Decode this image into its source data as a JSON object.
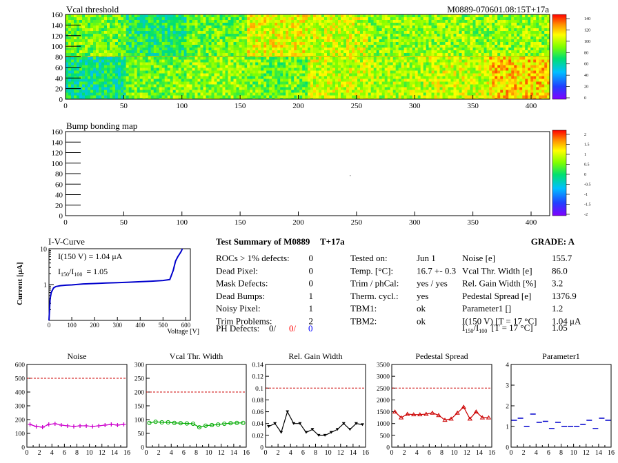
{
  "vcal_map": {
    "title": "Vcal threshold",
    "module_label": "M0889-070601.08:15T+17a",
    "x_ticks": [
      "0",
      "50",
      "100",
      "150",
      "200",
      "250",
      "300",
      "350",
      "400"
    ],
    "y_ticks": [
      "0",
      "20",
      "40",
      "60",
      "80",
      "100",
      "120",
      "140",
      "160"
    ],
    "colorbar_ticks": [
      "0",
      "20",
      "40",
      "60",
      "80",
      "100",
      "120",
      "140"
    ],
    "roc_means_top": [
      90,
      75,
      90,
      110,
      105,
      95,
      95,
      95
    ],
    "roc_means_bottom": [
      70,
      90,
      95,
      90,
      105,
      100,
      105,
      120
    ]
  },
  "bump_map": {
    "title": "Bump bonding map",
    "x_ticks": [
      "0",
      "50",
      "100",
      "150",
      "200",
      "250",
      "300",
      "350",
      "400"
    ],
    "y_ticks": [
      "0",
      "20",
      "40",
      "60",
      "80",
      "100",
      "120",
      "140",
      "160"
    ],
    "colorbar_ticks": [
      "-2",
      "-1.5",
      "-1",
      "-0.5",
      "0",
      "0.5",
      "1",
      "1.5",
      "2"
    ]
  },
  "iv": {
    "title": "I-V-Curve",
    "ylabel": "Current [μA]",
    "xlabel": "Voltage [V]",
    "x_ticks": [
      "0",
      "100",
      "200",
      "300",
      "400",
      "500",
      "600"
    ],
    "y_ticks": [
      "1",
      "10"
    ],
    "annot1": "I(150 V) = 1.04 μA",
    "annot2_main": "I",
    "annot2_sub1": "150",
    "annot2_mid": "/I",
    "annot2_sub2": "100",
    "annot2_val": "=  1.05"
  },
  "summary": {
    "title": "Test Summary of M0889",
    "tag": "T+17a",
    "grade": "GRADE:  A",
    "left": [
      {
        "label": "ROCs > 1% defects:",
        "value": "0"
      },
      {
        "label": "Dead Pixel:",
        "value": "0"
      },
      {
        "label": "Mask Defects:",
        "value": "0"
      },
      {
        "label": "Dead Bumps:",
        "value": "1"
      },
      {
        "label": "Noisy Pixel:",
        "value": "1"
      },
      {
        "label": "Trim Problems:",
        "value": "2"
      }
    ],
    "ph_label": "PH Defects:",
    "ph_v1": "0/",
    "ph_v2": "0/",
    "ph_v3": "0",
    "ph_colors": [
      "#000000",
      "#ff0000",
      "#0000ff"
    ],
    "mid": [
      {
        "label": "Tested on:",
        "value": "Jun 1"
      },
      {
        "label": "Temp. [°C]:",
        "value": "16.7 +- 0.3"
      },
      {
        "label": "Trim / phCal:",
        "value": "yes / yes"
      },
      {
        "label": "Therm. cycl.:",
        "value": "yes"
      },
      {
        "label": "TBM1:",
        "value": "ok"
      },
      {
        "label": "TBM2:",
        "value": "ok"
      }
    ],
    "right": [
      {
        "label": "Noise [e]",
        "value": "155.7"
      },
      {
        "label": "Vcal Thr. Width [e]",
        "value": "86.0"
      },
      {
        "label": "Rel. Gain Width [%]",
        "value": "3.2"
      },
      {
        "label": "Pedestal Spread [e]",
        "value": "1376.9"
      },
      {
        "label": "Parameter1 []",
        "value": "1.2"
      },
      {
        "label": "I(150 V) [T = 17 °C]",
        "value": "1.04 μA"
      }
    ],
    "ratio_label_tail": "[T = 17 °C]",
    "ratio_value": "1.05"
  },
  "chart_data": [
    {
      "type": "heatmap",
      "title": "Vcal threshold",
      "xlim": [
        0,
        416
      ],
      "ylim": [
        0,
        160
      ],
      "z_range": [
        0,
        150
      ],
      "note_rocs": "16 ROCs, 2 rows of 8"
    },
    {
      "type": "heatmap",
      "title": "Bump bonding map",
      "xlim": [
        0,
        416
      ],
      "ylim": [
        0,
        160
      ],
      "z_range": [
        -2,
        2
      ]
    },
    {
      "type": "line",
      "title": "I-V-Curve",
      "xlabel": "Voltage [V]",
      "ylabel": "Current [μA]",
      "xlim": [
        0,
        620
      ],
      "ylim": [
        0.1,
        10
      ],
      "yscale": "log",
      "x": [
        0,
        5,
        10,
        20,
        30,
        50,
        75,
        100,
        150,
        200,
        250,
        300,
        350,
        400,
        450,
        500,
        530,
        545,
        555,
        565,
        575,
        580,
        585
      ],
      "y": [
        0.1,
        0.4,
        0.6,
        0.8,
        0.88,
        0.93,
        0.96,
        0.98,
        1.04,
        1.07,
        1.1,
        1.13,
        1.16,
        1.2,
        1.24,
        1.3,
        1.38,
        2.5,
        4.5,
        6,
        7.5,
        8.5,
        10
      ],
      "color": "#0000cc"
    },
    {
      "type": "line",
      "title": "Noise",
      "xlim": [
        0,
        16
      ],
      "ylim": [
        0,
        600
      ],
      "x_ticks": [
        "0",
        "2",
        "4",
        "6",
        "8",
        "10",
        "12",
        "14",
        "16"
      ],
      "y_ticks": [
        "0",
        "100",
        "200",
        "300",
        "400",
        "500",
        "600"
      ],
      "x": [
        0.5,
        1.5,
        2.5,
        3.5,
        4.5,
        5.5,
        6.5,
        7.5,
        8.5,
        9.5,
        10.5,
        11.5,
        12.5,
        13.5,
        14.5,
        15.5
      ],
      "y": [
        165,
        150,
        145,
        165,
        170,
        160,
        155,
        150,
        155,
        155,
        150,
        155,
        160,
        165,
        160,
        165
      ],
      "threshold": 500,
      "color": "#cc00cc"
    },
    {
      "type": "line",
      "title": "Vcal Thr. Width",
      "xlim": [
        0,
        16
      ],
      "ylim": [
        0,
        300
      ],
      "x_ticks": [
        "0",
        "2",
        "4",
        "6",
        "8",
        "10",
        "12",
        "14",
        "16"
      ],
      "y_ticks": [
        "0",
        "50",
        "100",
        "150",
        "200",
        "250",
        "300"
      ],
      "x": [
        0.5,
        1.5,
        2.5,
        3.5,
        4.5,
        5.5,
        6.5,
        7.5,
        8.5,
        9.5,
        10.5,
        11.5,
        12.5,
        13.5,
        14.5,
        15.5
      ],
      "y": [
        88,
        92,
        90,
        90,
        88,
        87,
        86,
        85,
        72,
        78,
        80,
        82,
        85,
        87,
        88,
        88
      ],
      "threshold": 200,
      "color": "#00aa00"
    },
    {
      "type": "line",
      "title": "Rel. Gain Width",
      "xlim": [
        0,
        16
      ],
      "ylim": [
        0,
        0.14
      ],
      "x_ticks": [
        "0",
        "2",
        "4",
        "6",
        "8",
        "10",
        "12",
        "14",
        "16"
      ],
      "y_ticks": [
        "0",
        "0.02",
        "0.04",
        "0.06",
        "0.08",
        "0.1",
        "0.12",
        "0.14"
      ],
      "x": [
        0.5,
        1.5,
        2.5,
        3.5,
        4.5,
        5.5,
        6.5,
        7.5,
        8.5,
        9.5,
        10.5,
        11.5,
        12.5,
        13.5,
        14.5,
        15.5
      ],
      "y": [
        0.035,
        0.04,
        0.025,
        0.06,
        0.04,
        0.04,
        0.025,
        0.03,
        0.02,
        0.02,
        0.025,
        0.03,
        0.04,
        0.03,
        0.04,
        0.038
      ],
      "threshold": 0.1,
      "color": "#000000"
    },
    {
      "type": "line",
      "title": "Pedestal Spread",
      "xlim": [
        0,
        16
      ],
      "ylim": [
        0,
        3500
      ],
      "x_ticks": [
        "0",
        "2",
        "4",
        "6",
        "8",
        "10",
        "12",
        "14",
        "16"
      ],
      "y_ticks": [
        "0",
        "500",
        "1000",
        "1500",
        "2000",
        "2500",
        "3000",
        "3500"
      ],
      "x": [
        0.5,
        1.5,
        2.5,
        3.5,
        4.5,
        5.5,
        6.5,
        7.5,
        8.5,
        9.5,
        10.5,
        11.5,
        12.5,
        13.5,
        14.5,
        15.5
      ],
      "y": [
        1500,
        1250,
        1400,
        1380,
        1380,
        1400,
        1450,
        1350,
        1150,
        1200,
        1450,
        1700,
        1200,
        1500,
        1250,
        1250
      ],
      "threshold": 2500,
      "color": "#cc0000"
    },
    {
      "type": "scatter",
      "title": "Parameter1",
      "xlim": [
        0,
        16
      ],
      "ylim": [
        0,
        4
      ],
      "x_ticks": [
        "0",
        "2",
        "4",
        "6",
        "8",
        "10",
        "12",
        "14",
        "16"
      ],
      "y_ticks": [
        "0",
        "1",
        "2",
        "3",
        "4"
      ],
      "x": [
        0.5,
        1.5,
        2.5,
        3.5,
        4.5,
        5.5,
        6.5,
        7.5,
        8.5,
        9.5,
        10.5,
        11.5,
        12.5,
        13.5,
        14.5,
        15.5
      ],
      "y": [
        1.3,
        1.4,
        1.0,
        1.6,
        1.2,
        1.25,
        0.9,
        1.2,
        1.0,
        1.0,
        1.0,
        1.1,
        1.3,
        0.9,
        1.4,
        1.3
      ],
      "color": "#0000cc"
    }
  ]
}
